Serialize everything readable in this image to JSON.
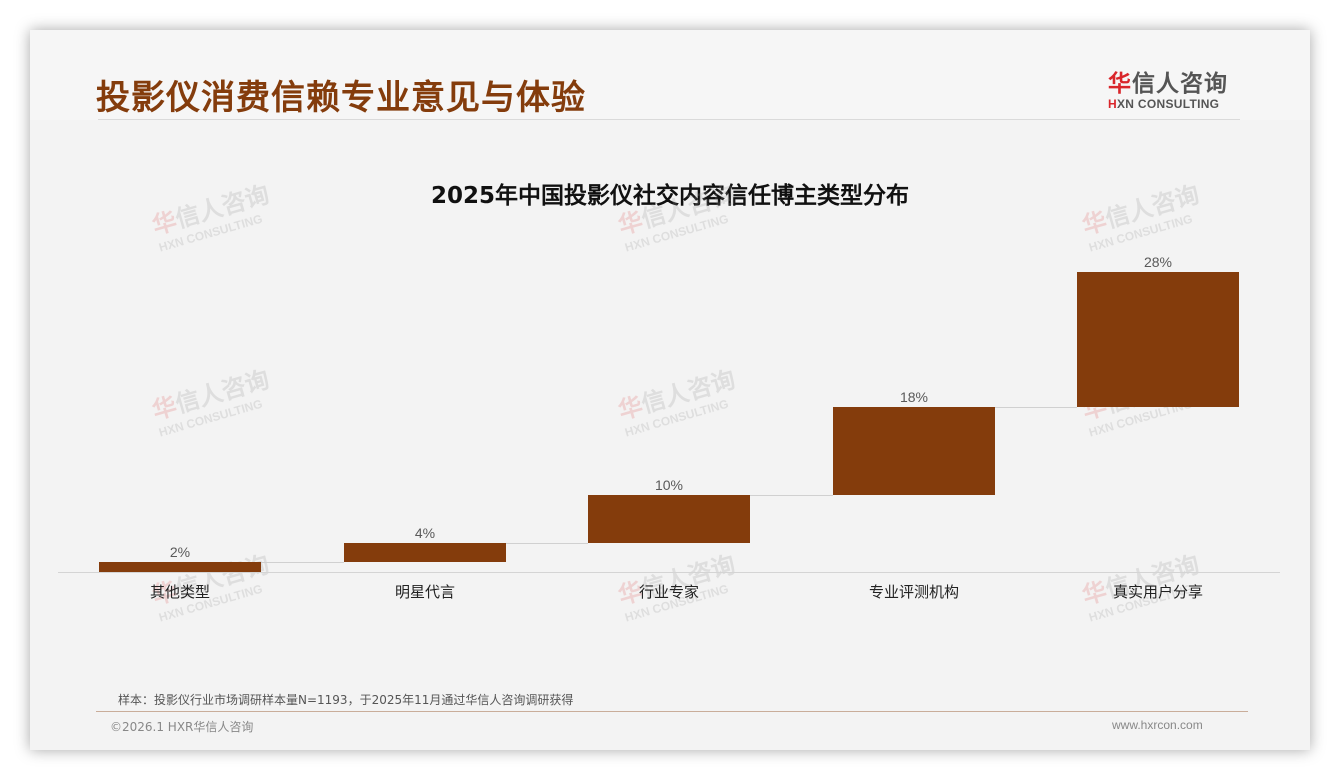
{
  "header": {
    "title": "投影仪消费信赖专业意见与体验",
    "logo_cn_first": "华",
    "logo_cn_rest": "信人咨询",
    "logo_en_first": "H",
    "logo_en_rest": "XN CONSULTING"
  },
  "watermark": {
    "cn_first": "华",
    "cn_rest": "信人咨询",
    "en": "HXN CONSULTING"
  },
  "chart_data": {
    "type": "waterfall",
    "title": "2025年中国投影仪社交内容信任博主类型分布",
    "categories": [
      "其他类型",
      "明星代言",
      "行业专家",
      "专业评测机构",
      "真实用户分享"
    ],
    "values": [
      2,
      4,
      10,
      18,
      28
    ],
    "value_labels": [
      "2%",
      "4%",
      "10%",
      "18%",
      "28%"
    ],
    "cumulative": [
      2,
      6,
      16,
      34,
      62
    ],
    "unit": "%",
    "xlabel": "",
    "ylabel": "",
    "grid": false,
    "legend": "none",
    "bar_color": "#843c0c"
  },
  "footer": {
    "note": "样本：投影仪行业市场调研样本量N=1193，于2025年11月通过华信人咨询调研获得",
    "copyright": "©2026.1 HXR华信人咨询",
    "website": "www.hxrcon.com"
  },
  "colors": {
    "title": "#843c0c",
    "bar": "#843c0c",
    "logo_red": "#d9262b",
    "background": "#f3f3f3"
  }
}
